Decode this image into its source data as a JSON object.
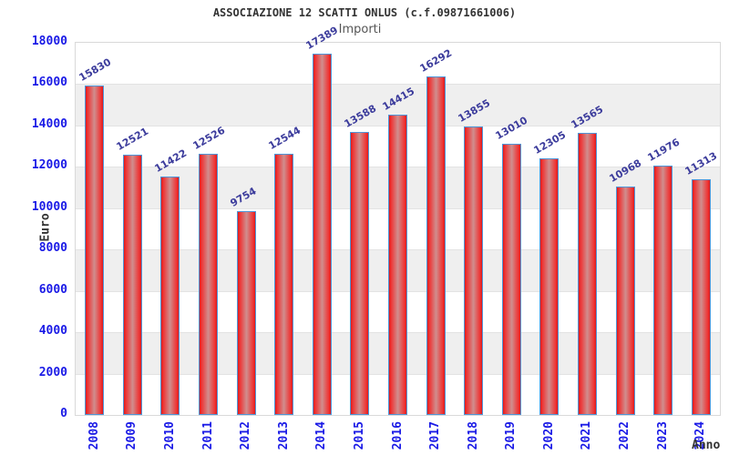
{
  "chart_data": {
    "type": "bar",
    "title": "ASSOCIAZIONE 12 SCATTI ONLUS (c.f.09871661006)",
    "subtitle": "Importi",
    "categories": [
      "2008",
      "2009",
      "2010",
      "2011",
      "2012",
      "2013",
      "2014",
      "2015",
      "2016",
      "2017",
      "2018",
      "2019",
      "2020",
      "2021",
      "2022",
      "2023",
      "2024"
    ],
    "values": [
      15830,
      12521,
      11422,
      12526,
      9754,
      12544,
      17389,
      13588,
      14415,
      16292,
      13855,
      13010,
      12305,
      13565,
      10968,
      11976,
      11313
    ],
    "xlabel": "Anno",
    "ylabel": "Euro",
    "ylim": [
      0,
      18000
    ],
    "ytick_step": 2000,
    "grid": "horizontal-bands-alternating",
    "legend": "none",
    "colors": {
      "bar_edge_red": "#e01a1a",
      "bar_bright_red": "#ee3535",
      "bar_mid_rose": "#d08e8e",
      "bar_border_blue": "#4f96d8",
      "tick_label_blue": "#1a1ae6",
      "value_label_blue": "#3c3c9c",
      "axis_title_gray": "#333333",
      "band_gray": "#efefef",
      "band_line": "#e3e3e3",
      "plot_border": "#d9d9d9"
    }
  }
}
